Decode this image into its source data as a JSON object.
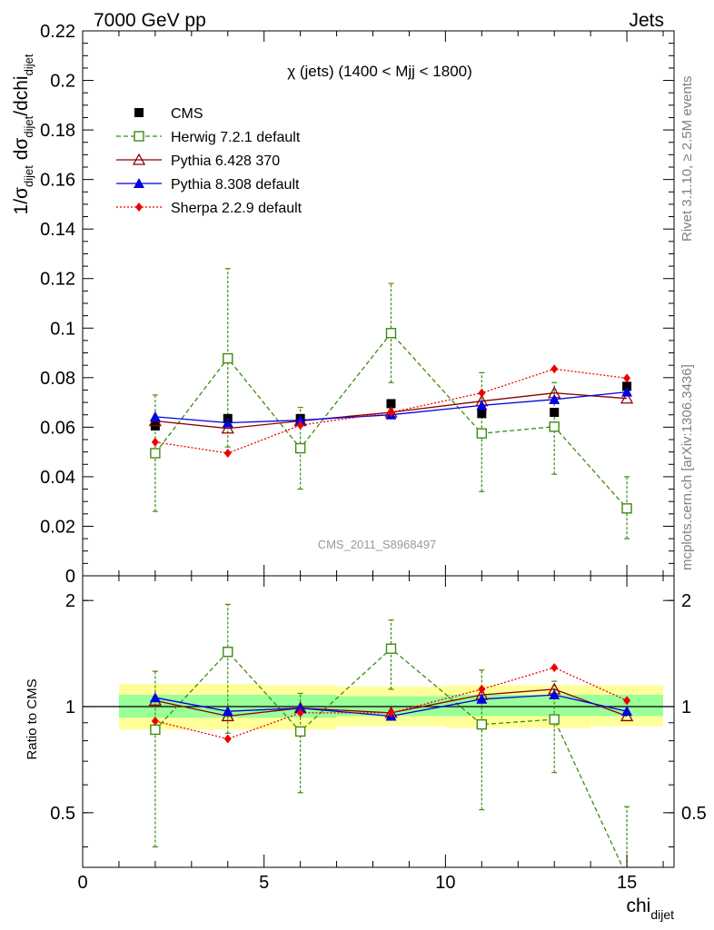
{
  "header": {
    "left": "7000 GeV pp",
    "right": "Jets"
  },
  "side_labels": {
    "rivet": "Rivet 3.1.10, ≥ 2.5M events",
    "mcplots": "mcplots.cern.ch [arXiv:1306.3436]"
  },
  "chart_data": [
    {
      "type": "scatter",
      "title": "χ (jets) (1400 < Mjj < 1800)",
      "watermark": "CMS_2011_S8968497",
      "ylabel_parts": [
        "1/σ",
        "dijet",
        " dσ",
        "dijet",
        "/dchi",
        "dijet"
      ],
      "xlim": [
        0,
        16.3
      ],
      "ylim": [
        0,
        0.22
      ],
      "yticks": [
        0,
        0.02,
        0.04,
        0.06,
        0.08,
        0.1,
        0.12,
        0.14,
        0.16,
        0.18,
        0.2,
        0.22
      ],
      "ytick_labels": [
        "0",
        "0.02",
        "0.04",
        "0.06",
        "0.08",
        "0.1",
        "0.12",
        "0.14",
        "0.16",
        "0.18",
        "0.2",
        "0.22"
      ],
      "legend_position": "top-left",
      "series": [
        {
          "name": "CMS",
          "color": "#000000",
          "marker": "square-filled",
          "line": "none",
          "x": [
            2,
            4,
            6,
            8.5,
            11,
            13,
            15
          ],
          "y": [
            0.0605,
            0.0635,
            0.0635,
            0.0695,
            0.0655,
            0.066,
            0.0765
          ]
        },
        {
          "name": "Herwig 7.2.1 default",
          "color": "#3d8c10",
          "marker": "square-open",
          "line": "dashed",
          "x": [
            2,
            4,
            6,
            8.5,
            11,
            13,
            15
          ],
          "y": [
            0.0495,
            0.0878,
            0.0515,
            0.098,
            0.0575,
            0.0602,
            0.0272
          ],
          "err_lo": [
            0.026,
            0.052,
            0.035,
            0.078,
            0.034,
            0.041,
            0.015
          ],
          "err_hi": [
            0.073,
            0.124,
            0.068,
            0.118,
            0.082,
            0.078,
            0.04
          ]
        },
        {
          "name": "Pythia 6.428 370",
          "color": "#8b0000",
          "marker": "triangle-open",
          "line": "solid",
          "x": [
            2,
            4,
            6,
            8.5,
            11,
            13,
            15
          ],
          "y": [
            0.0625,
            0.0595,
            0.0625,
            0.066,
            0.0705,
            0.0738,
            0.0716
          ]
        },
        {
          "name": "Pythia 8.308 default",
          "color": "#0000e0",
          "marker": "triangle-filled",
          "line": "solid",
          "x": [
            2,
            4,
            6,
            8.5,
            11,
            13,
            15
          ],
          "y": [
            0.0642,
            0.0618,
            0.0628,
            0.065,
            0.0688,
            0.0712,
            0.0742
          ]
        },
        {
          "name": "Sherpa 2.2.9 default",
          "color": "#ee0000",
          "marker": "diamond-filled",
          "line": "dotted",
          "x": [
            2,
            4,
            6,
            8.5,
            11,
            13,
            15
          ],
          "y": [
            0.054,
            0.0495,
            0.0608,
            0.066,
            0.0738,
            0.0835,
            0.0798
          ]
        }
      ]
    },
    {
      "type": "scatter",
      "ylabel": "Ratio to CMS",
      "xlabel_parts": [
        "chi",
        "dijet"
      ],
      "xlim": [
        0,
        16.3
      ],
      "ylim": [
        0.35,
        2.35
      ],
      "log_y": true,
      "xticks": [
        0,
        5,
        10,
        15
      ],
      "xtick_labels": [
        "0",
        "5",
        "10",
        "15"
      ],
      "yticks_labeled": [
        0.5,
        1,
        2
      ],
      "ytick_labels": [
        "0.5",
        "1",
        "2"
      ],
      "bands": [
        {
          "x0": 1,
          "x1": 3,
          "stat_lo": 0.93,
          "stat_hi": 1.08,
          "tot_lo": 0.86,
          "tot_hi": 1.16
        },
        {
          "x0": 3,
          "x1": 5,
          "stat_lo": 0.93,
          "stat_hi": 1.08,
          "tot_lo": 0.86,
          "tot_hi": 1.16
        },
        {
          "x0": 5,
          "x1": 7,
          "stat_lo": 0.93,
          "stat_hi": 1.08,
          "tot_lo": 0.86,
          "tot_hi": 1.15
        },
        {
          "x0": 7,
          "x1": 10,
          "stat_lo": 0.94,
          "stat_hi": 1.07,
          "tot_lo": 0.88,
          "tot_hi": 1.14
        },
        {
          "x0": 10,
          "x1": 12,
          "stat_lo": 0.94,
          "stat_hi": 1.08,
          "tot_lo": 0.87,
          "tot_hi": 1.15
        },
        {
          "x0": 12,
          "x1": 14,
          "stat_lo": 0.94,
          "stat_hi": 1.08,
          "tot_lo": 0.87,
          "tot_hi": 1.15
        },
        {
          "x0": 14,
          "x1": 16,
          "stat_lo": 0.94,
          "stat_hi": 1.08,
          "tot_lo": 0.88,
          "tot_hi": 1.15
        }
      ],
      "series": [
        {
          "name": "Herwig 7.2.1 default",
          "color": "#3d8c10",
          "marker": "square-open",
          "line": "dashed",
          "x": [
            2,
            4,
            6,
            8.5,
            11,
            13,
            15
          ],
          "y": [
            0.86,
            1.43,
            0.85,
            1.46,
            0.89,
            0.92,
            0.33
          ],
          "err_lo": [
            0.4,
            0.84,
            0.57,
            1.12,
            0.51,
            0.65,
            0.2
          ],
          "err_hi": [
            1.26,
            1.95,
            1.09,
            1.76,
            1.27,
            1.18,
            0.52
          ]
        },
        {
          "name": "Pythia 6.428 370",
          "color": "#8b0000",
          "marker": "triangle-open",
          "line": "solid",
          "x": [
            2,
            4,
            6,
            8.5,
            11,
            13,
            15
          ],
          "y": [
            1.04,
            0.94,
            0.99,
            0.96,
            1.08,
            1.12,
            0.94
          ]
        },
        {
          "name": "Pythia 8.308 default",
          "color": "#0000e0",
          "marker": "triangle-filled",
          "line": "solid",
          "x": [
            2,
            4,
            6,
            8.5,
            11,
            13,
            15
          ],
          "y": [
            1.06,
            0.97,
            0.99,
            0.94,
            1.05,
            1.08,
            0.97
          ]
        },
        {
          "name": "Sherpa 2.2.9 default",
          "color": "#ee0000",
          "marker": "diamond-filled",
          "line": "dotted",
          "x": [
            2,
            4,
            6,
            8.5,
            11,
            13,
            15
          ],
          "y": [
            0.91,
            0.81,
            0.96,
            0.96,
            1.12,
            1.29,
            1.04
          ]
        }
      ]
    }
  ]
}
